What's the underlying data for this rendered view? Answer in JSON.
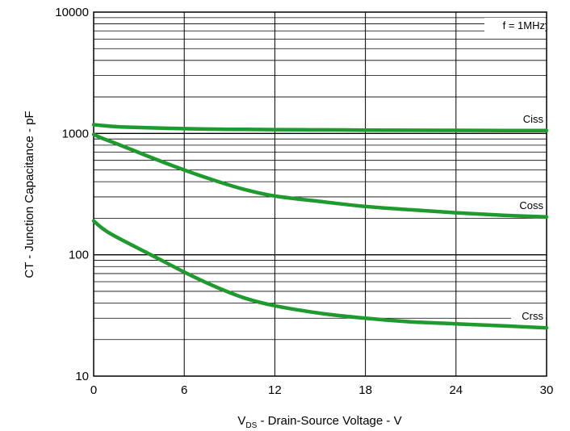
{
  "chart_data": {
    "type": "line",
    "title": "",
    "xlabel": {
      "main": "V",
      "sub": "DS",
      "rest": " - Drain-Source Voltage - V"
    },
    "ylabel": "CT - Junction Capacitance - pF",
    "annotation": "f = 1MHz",
    "x_scale": "linear",
    "y_scale": "log",
    "xlim": [
      0,
      30
    ],
    "ylim": [
      10,
      10000
    ],
    "x_ticks": [
      "0",
      "6",
      "12",
      "18",
      "24",
      "30"
    ],
    "x_tick_values": [
      0,
      6,
      12,
      18,
      24,
      30
    ],
    "y_ticks": [
      "10",
      "100",
      "1000",
      "10000"
    ],
    "y_tick_values": [
      10,
      100,
      1000,
      10000
    ],
    "grid": true,
    "legend": "inline labels at right",
    "line_color": "#1f9a2f",
    "series": [
      {
        "name": "Ciss",
        "x": [
          0,
          1,
          2,
          4,
          6,
          8,
          10,
          12,
          15,
          18,
          21,
          24,
          27,
          30
        ],
        "y": [
          1180,
          1150,
          1130,
          1110,
          1095,
          1085,
          1080,
          1075,
          1070,
          1065,
          1062,
          1060,
          1058,
          1056
        ]
      },
      {
        "name": "Coss",
        "x": [
          0,
          0.5,
          1,
          2,
          4,
          6,
          8,
          10,
          12,
          15,
          18,
          21,
          24,
          27,
          30
        ],
        "y": [
          980,
          920,
          870,
          780,
          620,
          500,
          410,
          345,
          305,
          275,
          250,
          235,
          222,
          212,
          205
        ]
      },
      {
        "name": "Crss",
        "x": [
          0,
          0.5,
          1,
          2,
          4,
          6,
          8,
          10,
          12,
          15,
          18,
          21,
          24,
          27,
          30
        ],
        "y": [
          190,
          168,
          152,
          130,
          97,
          72,
          55,
          44,
          38,
          33,
          30,
          28,
          27,
          26,
          25
        ]
      }
    ]
  }
}
